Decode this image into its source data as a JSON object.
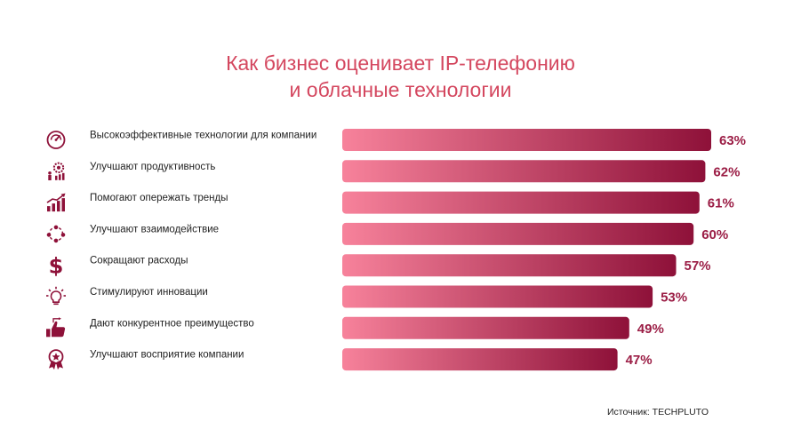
{
  "chart_data": {
    "type": "bar",
    "orientation": "horizontal",
    "title_lines": [
      "Как бизнес оценивает IP-телефонию",
      "и облачные технологии"
    ],
    "categories": [
      "Высокоэффективные технологии для компании",
      "Улучшают продуктивность",
      "Помогают опережать тренды",
      "Улучшают взаимодействие",
      "Сокращают расходы",
      "Стимулируют инновации",
      "Дают конкурентное преимущество",
      "Улучшают восприятие компании"
    ],
    "values": [
      63,
      62,
      61,
      60,
      57,
      53,
      49,
      47
    ],
    "value_labels": [
      "63%",
      "62%",
      "61%",
      "60%",
      "57%",
      "53%",
      "49%",
      "47%"
    ],
    "icons": [
      "speedometer-icon",
      "productivity-gear-icon",
      "growth-chart-icon",
      "team-interaction-icon",
      "dollar-icon",
      "lightbulb-icon",
      "thumbs-up-icon",
      "award-medal-icon"
    ],
    "unit": "%",
    "xlim": [
      0,
      63
    ],
    "colors": {
      "bar_start": "#f7829b",
      "bar_end": "#8e1139",
      "value": "#9b1d45",
      "title": "#d4475f",
      "icon": "#8e1139"
    }
  },
  "source": "Источник: TECHPLUTO"
}
